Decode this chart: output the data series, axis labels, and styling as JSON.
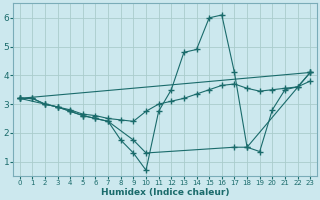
{
  "xlabel": "Humidex (Indice chaleur)",
  "xlim": [
    -0.5,
    23.5
  ],
  "ylim": [
    0.5,
    6.5
  ],
  "xticks": [
    0,
    1,
    2,
    3,
    4,
    5,
    6,
    7,
    8,
    9,
    10,
    11,
    12,
    13,
    14,
    15,
    16,
    17,
    18,
    19,
    20,
    21,
    22,
    23
  ],
  "yticks": [
    1,
    2,
    3,
    4,
    5,
    6
  ],
  "bg_color": "#cce8ee",
  "grid_color": "#aacccc",
  "line_color": "#1a6b6b",
  "lines": [
    {
      "x": [
        0,
        1,
        2,
        3,
        4,
        5,
        6,
        7,
        8,
        9,
        10,
        11,
        12,
        13,
        14,
        15,
        16,
        17,
        18,
        19,
        20,
        21,
        22,
        23
      ],
      "y": [
        3.2,
        3.2,
        3.0,
        2.9,
        2.8,
        2.65,
        2.6,
        2.5,
        2.45,
        2.4,
        2.75,
        3.0,
        3.1,
        3.2,
        3.35,
        3.5,
        3.65,
        3.7,
        3.55,
        3.45,
        3.5,
        3.55,
        3.6,
        3.8
      ]
    },
    {
      "x": [
        0,
        1,
        2,
        3,
        4,
        5,
        6,
        7,
        8,
        9,
        10,
        11,
        12,
        13,
        14,
        15,
        16,
        17,
        18,
        23
      ],
      "y": [
        3.2,
        3.2,
        3.0,
        2.9,
        2.75,
        2.6,
        2.5,
        2.4,
        1.75,
        1.3,
        0.7,
        2.75,
        3.5,
        4.8,
        4.9,
        6.0,
        6.1,
        4.1,
        1.5,
        4.1
      ]
    },
    {
      "x": [
        0,
        2,
        3,
        4,
        5,
        6,
        7,
        9,
        10,
        17,
        18,
        19,
        20,
        21,
        22,
        23
      ],
      "y": [
        3.2,
        3.0,
        2.9,
        2.75,
        2.6,
        2.5,
        2.4,
        1.75,
        1.3,
        1.5,
        1.5,
        1.35,
        2.8,
        3.5,
        3.6,
        4.1
      ]
    },
    {
      "x": [
        0,
        23
      ],
      "y": [
        3.2,
        4.1
      ]
    }
  ]
}
